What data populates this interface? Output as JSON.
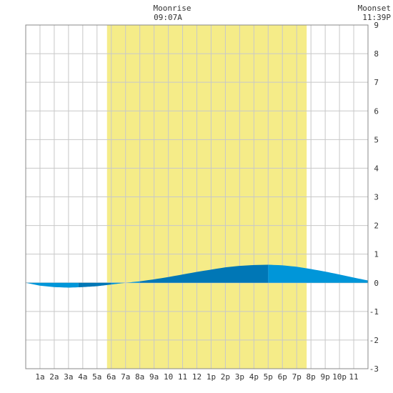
{
  "header": {
    "moonrise_label": "Moonrise",
    "moonrise_time": "09:07A",
    "moonset_label": "Moonset",
    "moonset_time": "11:39P"
  },
  "chart_data": {
    "type": "area",
    "x_tick_labels": [
      "1a",
      "2a",
      "3a",
      "4a",
      "5a",
      "6a",
      "7a",
      "8a",
      "9a",
      "10",
      "11",
      "12",
      "1p",
      "2p",
      "3p",
      "4p",
      "5p",
      "6p",
      "7p",
      "8p",
      "9p",
      "10p",
      "11"
    ],
    "y_tick_labels": [
      "9",
      "8",
      "7",
      "6",
      "5",
      "4",
      "3",
      "2",
      "1",
      "0",
      "-1",
      "-2",
      "-3"
    ],
    "xlim": [
      0,
      24
    ],
    "ylim": [
      -3,
      9
    ],
    "daylight": {
      "start_hour": 5.7,
      "end_hour": 19.7
    },
    "series": [
      {
        "x": [
          0,
          1,
          2,
          3,
          4,
          5,
          6,
          7,
          8,
          9,
          10,
          11,
          12,
          13,
          14,
          15,
          16,
          17,
          18,
          19,
          20,
          21,
          22,
          23,
          24
        ],
        "values": [
          0.0,
          -0.1,
          -0.15,
          -0.17,
          -0.15,
          -0.12,
          -0.06,
          0.0,
          0.05,
          0.12,
          0.2,
          0.29,
          0.38,
          0.46,
          0.54,
          0.59,
          0.62,
          0.63,
          0.61,
          0.56,
          0.48,
          0.39,
          0.29,
          0.18,
          0.08
        ]
      }
    ],
    "tide_segments": [
      {
        "from_hour": 0,
        "to_hour": 3.7,
        "shade": "light"
      },
      {
        "from_hour": 3.7,
        "to_hour": 6.0,
        "shade": "dark"
      },
      {
        "from_hour": 6.0,
        "to_hour": 8.0,
        "shade": "light"
      },
      {
        "from_hour": 8.0,
        "to_hour": 17.0,
        "shade": "dark"
      },
      {
        "from_hour": 17.0,
        "to_hour": 24,
        "shade": "light"
      }
    ],
    "grid": true,
    "colors": {
      "daylight": "#f5ec88",
      "tide_light": "#0096d9",
      "tide_dark": "#0077b6",
      "grid": "#c8c8c8",
      "text": "#333333"
    }
  }
}
